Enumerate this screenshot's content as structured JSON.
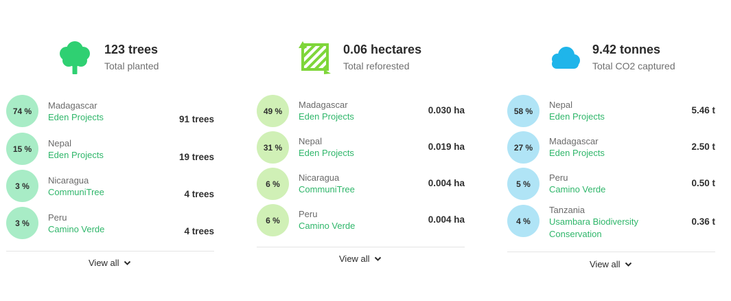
{
  "panels": [
    {
      "summary": {
        "value": "123 trees",
        "label": "Total planted",
        "icon": "tree-icon"
      },
      "circle_color": "#a8ecc6",
      "rows": [
        {
          "percent": "74 %",
          "country": "Madagascar",
          "project": "Eden Projects",
          "amount": "91 trees"
        },
        {
          "percent": "15 %",
          "country": "Nepal",
          "project": "Eden Projects",
          "amount": "19 trees"
        },
        {
          "percent": "3 %",
          "country": "Nicaragua",
          "project": "CommuniTree",
          "amount": "4 trees"
        },
        {
          "percent": "3 %",
          "country": "Peru",
          "project": "Camino Verde",
          "amount": "4 trees"
        }
      ],
      "view_all": "View all"
    },
    {
      "summary": {
        "value": "0.06 hectares",
        "label": "Total reforested",
        "icon": "reforested-area-icon"
      },
      "circle_color": "#d0f0b6",
      "rows": [
        {
          "percent": "49 %",
          "country": "Madagascar",
          "project": "Eden Projects",
          "amount": "0.030 ha"
        },
        {
          "percent": "31 %",
          "country": "Nepal",
          "project": "Eden Projects",
          "amount": "0.019 ha"
        },
        {
          "percent": "6 %",
          "country": "Nicaragua",
          "project": "CommuniTree",
          "amount": "0.004 ha"
        },
        {
          "percent": "6 %",
          "country": "Peru",
          "project": "Camino Verde",
          "amount": "0.004 ha"
        }
      ],
      "view_all": "View all"
    },
    {
      "summary": {
        "value": "9.42 tonnes",
        "label": "Total CO2 captured",
        "icon": "cloud-icon"
      },
      "circle_color": "#b0e4f6",
      "rows": [
        {
          "percent": "58 %",
          "country": "Nepal",
          "project": "Eden Projects",
          "amount": "5.46 t"
        },
        {
          "percent": "27 %",
          "country": "Madagascar",
          "project": "Eden Projects",
          "amount": "2.50 t"
        },
        {
          "percent": "5 %",
          "country": "Peru",
          "project": "Camino Verde",
          "amount": "0.50 t"
        },
        {
          "percent": "4 %",
          "country": "Tanzania",
          "project": "Usambara Biodiversity Conservation",
          "amount": "0.36 t"
        }
      ],
      "view_all": "View all"
    }
  ],
  "colors": {
    "accent_green": "#2fb66a",
    "tree_green": "#2fd072",
    "area_green": "#7fd63a",
    "cloud_blue": "#1fb5ea"
  }
}
